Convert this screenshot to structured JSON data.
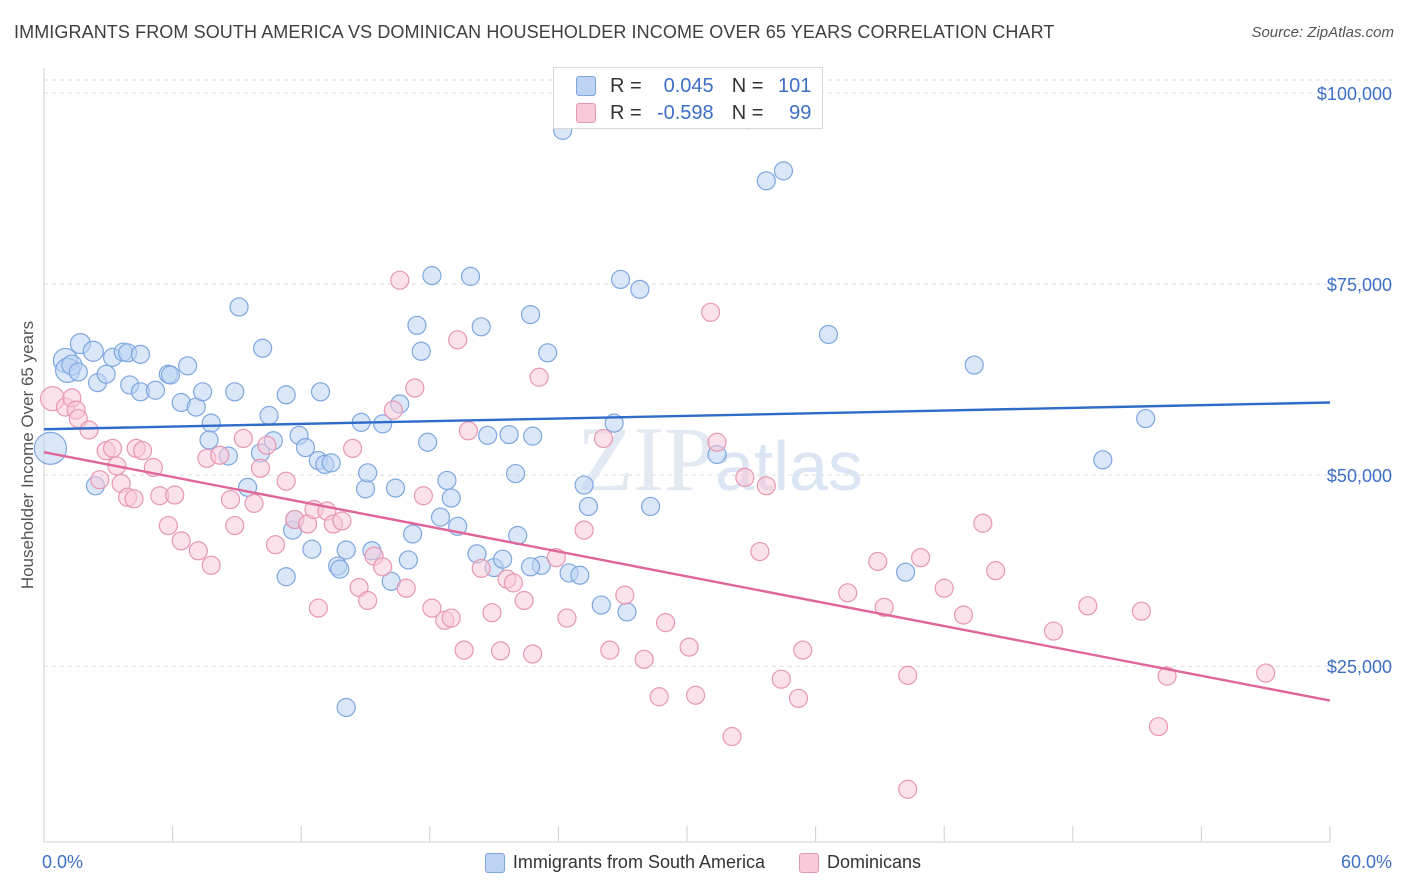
{
  "title": "IMMIGRANTS FROM SOUTH AMERICA VS DOMINICAN HOUSEHOLDER INCOME OVER 65 YEARS CORRELATION CHART",
  "source": "Source: ZipAtlas.com",
  "watermark": "ZIPatlas",
  "stats_box": {
    "rows": [
      {
        "r_label": "R =",
        "r_value": "0.045",
        "n_label": "N =",
        "n_value": "101",
        "color": "#7ea6df"
      },
      {
        "r_label": "R =",
        "r_value": "-0.598",
        "n_label": "N =",
        "n_value": "99",
        "color": "#e797b1"
      }
    ]
  },
  "legend": [
    {
      "label": "Immigrants from South America",
      "color": "#7ea6df"
    },
    {
      "label": "Dominicans",
      "color": "#e797b1"
    }
  ],
  "chart_data": {
    "type": "scatter",
    "title": "IMMIGRANTS FROM SOUTH AMERICA VS DOMINICAN HOUSEHOLDER INCOME OVER 65 YEARS CORRELATION CHART",
    "xlabel": "",
    "ylabel": "Householder Income Over 65 years",
    "xlim": [
      0,
      60
    ],
    "ylim": [
      2000,
      103000
    ],
    "x_tick_labels": [
      "0.0%",
      "60.0%"
    ],
    "y_ticks": [
      25000,
      50000,
      75000,
      100000
    ],
    "y_tick_labels": [
      "$25,000",
      "$50,000",
      "$75,000",
      "$100,000"
    ],
    "grid": true,
    "series": [
      {
        "name": "Immigrants from South America",
        "color": "#7ea6df",
        "fill": "#bcd3f2",
        "trend": {
          "x": [
            0,
            60
          ],
          "y": [
            56000,
            59500
          ]
        },
        "points": [
          [
            0.3,
            53.5,
            16
          ],
          [
            1.0,
            65.0,
            12
          ],
          [
            1.1,
            63.7,
            12
          ],
          [
            1.7,
            67.2,
            10
          ],
          [
            2.3,
            66.2,
            10
          ],
          [
            1.3,
            64.4,
            10
          ],
          [
            1.6,
            63.5,
            9
          ],
          [
            2.5,
            62.1,
            9
          ],
          [
            2.9,
            63.2,
            9
          ],
          [
            3.2,
            65.4,
            9
          ],
          [
            3.7,
            66.1,
            9
          ],
          [
            3.9,
            66.0,
            9
          ],
          [
            4.5,
            65.8,
            9
          ],
          [
            4.0,
            61.8,
            9
          ],
          [
            4.5,
            60.9,
            9
          ],
          [
            5.2,
            61.1,
            9
          ],
          [
            5.8,
            63.2,
            9
          ],
          [
            5.9,
            63.1,
            9
          ],
          [
            6.4,
            59.5,
            9
          ],
          [
            6.7,
            64.3,
            9
          ],
          [
            7.1,
            58.9,
            9
          ],
          [
            7.4,
            60.9,
            9
          ],
          [
            7.8,
            56.8,
            9
          ],
          [
            7.7,
            54.6,
            9
          ],
          [
            8.6,
            52.5,
            9
          ],
          [
            8.9,
            60.9,
            9
          ],
          [
            9.1,
            72.0,
            9
          ],
          [
            9.5,
            48.4,
            9
          ],
          [
            10.1,
            52.9,
            9
          ],
          [
            10.2,
            66.6,
            9
          ],
          [
            10.5,
            57.8,
            9
          ],
          [
            10.7,
            54.5,
            9
          ],
          [
            11.3,
            60.5,
            9
          ],
          [
            11.3,
            36.7,
            9
          ],
          [
            11.6,
            42.8,
            9
          ],
          [
            11.7,
            44.2,
            9
          ],
          [
            11.9,
            55.2,
            9
          ],
          [
            12.2,
            53.6,
            9
          ],
          [
            12.5,
            40.3,
            9
          ],
          [
            12.8,
            51.9,
            9
          ],
          [
            12.9,
            60.9,
            9
          ],
          [
            13.1,
            51.4,
            9
          ],
          [
            13.4,
            51.6,
            9
          ],
          [
            13.7,
            38.1,
            9
          ],
          [
            14.1,
            40.2,
            9
          ],
          [
            14.8,
            56.9,
            9
          ],
          [
            15.0,
            48.2,
            9
          ],
          [
            15.1,
            50.3,
            9
          ],
          [
            15.3,
            40.1,
            9
          ],
          [
            15.8,
            56.7,
            9
          ],
          [
            16.2,
            36.1,
            9
          ],
          [
            16.4,
            48.3,
            9
          ],
          [
            16.6,
            59.3,
            9
          ],
          [
            17.0,
            38.9,
            9
          ],
          [
            17.2,
            42.3,
            9
          ],
          [
            17.4,
            69.6,
            9
          ],
          [
            17.6,
            66.2,
            9
          ],
          [
            17.9,
            54.3,
            9
          ],
          [
            18.1,
            76.1,
            9
          ],
          [
            18.5,
            44.5,
            9
          ],
          [
            18.8,
            49.3,
            9
          ],
          [
            19.0,
            47.0,
            9
          ],
          [
            19.3,
            43.3,
            9
          ],
          [
            19.9,
            76.0,
            9
          ],
          [
            20.2,
            39.7,
            9
          ],
          [
            20.4,
            69.4,
            9
          ],
          [
            20.7,
            55.2,
            9
          ],
          [
            21.0,
            37.9,
            9
          ],
          [
            21.4,
            39.0,
            9
          ],
          [
            21.7,
            55.3,
            9
          ],
          [
            22.0,
            50.2,
            9
          ],
          [
            22.1,
            42.1,
            9
          ],
          [
            22.7,
            71.0,
            9
          ],
          [
            22.8,
            55.1,
            9
          ],
          [
            23.2,
            38.2,
            9
          ],
          [
            23.5,
            66.0,
            9
          ],
          [
            24.2,
            95.1,
            9
          ],
          [
            24.5,
            37.2,
            9
          ],
          [
            25.0,
            36.9,
            9
          ],
          [
            25.2,
            48.7,
            9
          ],
          [
            25.4,
            45.9,
            9
          ],
          [
            26.0,
            33.0,
            9
          ],
          [
            26.6,
            56.8,
            9
          ],
          [
            26.9,
            75.6,
            9
          ],
          [
            27.2,
            32.1,
            9
          ],
          [
            27.8,
            74.3,
            9
          ],
          [
            28.3,
            45.9,
            9
          ],
          [
            31.4,
            52.7,
            9
          ],
          [
            32.3,
            99.7,
            9
          ],
          [
            32.8,
            96.5,
            9
          ],
          [
            33.7,
            88.5,
            9
          ],
          [
            34.5,
            89.8,
            9
          ],
          [
            36.6,
            68.4,
            9
          ],
          [
            40.2,
            37.3,
            9
          ],
          [
            43.4,
            64.4,
            9
          ],
          [
            49.4,
            52.0,
            9
          ],
          [
            51.4,
            57.4,
            9
          ],
          [
            14.1,
            19.6,
            9
          ],
          [
            2.4,
            48.6,
            9
          ],
          [
            13.8,
            37.7,
            9
          ],
          [
            22.7,
            38.0,
            9
          ]
        ]
      },
      {
        "name": "Dominicans",
        "color": "#e797b1",
        "fill": "#f8c9d8",
        "trend": {
          "x": [
            0,
            60
          ],
          "y": [
            53000,
            20500
          ]
        },
        "points": [
          [
            0.4,
            60.0,
            12
          ],
          [
            1.0,
            58.9,
            9
          ],
          [
            1.3,
            60.1,
            9
          ],
          [
            1.5,
            58.5,
            9
          ],
          [
            1.6,
            57.4,
            9
          ],
          [
            2.1,
            55.9,
            9
          ],
          [
            2.6,
            49.4,
            9
          ],
          [
            2.9,
            53.2,
            9
          ],
          [
            3.2,
            53.5,
            9
          ],
          [
            3.4,
            51.2,
            9
          ],
          [
            3.6,
            48.9,
            9
          ],
          [
            3.9,
            47.1,
            9
          ],
          [
            4.2,
            46.9,
            9
          ],
          [
            4.3,
            53.5,
            9
          ],
          [
            4.6,
            53.2,
            9
          ],
          [
            5.1,
            51.0,
            9
          ],
          [
            5.4,
            47.3,
            9
          ],
          [
            5.8,
            43.4,
            9
          ],
          [
            6.1,
            47.4,
            9
          ],
          [
            6.4,
            41.4,
            9
          ],
          [
            7.2,
            40.1,
            9
          ],
          [
            7.6,
            52.2,
            9
          ],
          [
            7.8,
            38.2,
            9
          ],
          [
            8.2,
            52.6,
            9
          ],
          [
            8.7,
            46.8,
            9
          ],
          [
            8.9,
            43.4,
            9
          ],
          [
            9.3,
            54.8,
            9
          ],
          [
            9.8,
            46.3,
            9
          ],
          [
            10.1,
            50.9,
            9
          ],
          [
            10.4,
            53.9,
            9
          ],
          [
            10.8,
            40.9,
            9
          ],
          [
            11.3,
            49.2,
            9
          ],
          [
            11.7,
            44.2,
            9
          ],
          [
            12.3,
            43.6,
            9
          ],
          [
            12.6,
            45.5,
            9
          ],
          [
            12.8,
            32.6,
            9
          ],
          [
            13.2,
            45.3,
            9
          ],
          [
            13.5,
            43.6,
            9
          ],
          [
            13.9,
            44.0,
            9
          ],
          [
            14.4,
            53.5,
            9
          ],
          [
            14.7,
            35.3,
            9
          ],
          [
            15.1,
            33.6,
            9
          ],
          [
            15.4,
            39.4,
            9
          ],
          [
            15.8,
            38.0,
            9
          ],
          [
            16.3,
            58.5,
            9
          ],
          [
            16.6,
            75.5,
            9
          ],
          [
            16.9,
            35.2,
            9
          ],
          [
            17.3,
            61.4,
            9
          ],
          [
            17.7,
            47.3,
            9
          ],
          [
            18.1,
            32.6,
            9
          ],
          [
            18.7,
            31.0,
            9
          ],
          [
            19.0,
            31.3,
            9
          ],
          [
            19.3,
            67.7,
            9
          ],
          [
            19.6,
            27.1,
            9
          ],
          [
            19.8,
            55.8,
            9
          ],
          [
            20.4,
            37.8,
            9
          ],
          [
            20.9,
            32.0,
            9
          ],
          [
            21.3,
            27.0,
            9
          ],
          [
            21.6,
            36.4,
            9
          ],
          [
            21.9,
            35.9,
            9
          ],
          [
            22.4,
            33.6,
            9
          ],
          [
            22.8,
            26.6,
            9
          ],
          [
            23.1,
            62.8,
            9
          ],
          [
            23.9,
            39.2,
            9
          ],
          [
            24.4,
            31.3,
            9
          ],
          [
            25.2,
            42.8,
            9
          ],
          [
            26.1,
            54.8,
            9
          ],
          [
            26.4,
            27.1,
            9
          ],
          [
            27.1,
            34.3,
            9
          ],
          [
            28.0,
            25.9,
            9
          ],
          [
            28.7,
            21.0,
            9
          ],
          [
            29.0,
            30.7,
            9
          ],
          [
            30.1,
            27.5,
            9
          ],
          [
            30.4,
            21.2,
            9
          ],
          [
            31.1,
            71.3,
            9
          ],
          [
            31.4,
            54.3,
            9
          ],
          [
            32.1,
            15.8,
            9
          ],
          [
            32.7,
            49.7,
            9
          ],
          [
            33.4,
            40.0,
            9
          ],
          [
            33.7,
            48.6,
            9
          ],
          [
            34.4,
            23.3,
            9
          ],
          [
            35.2,
            20.8,
            9
          ],
          [
            35.4,
            27.1,
            9
          ],
          [
            37.5,
            34.6,
            9
          ],
          [
            38.9,
            38.7,
            9
          ],
          [
            39.2,
            32.7,
            9
          ],
          [
            40.3,
            23.8,
            9
          ],
          [
            40.3,
            8.9,
            9
          ],
          [
            40.9,
            39.2,
            9
          ],
          [
            42.0,
            35.2,
            9
          ],
          [
            42.9,
            31.7,
            9
          ],
          [
            43.8,
            43.7,
            9
          ],
          [
            44.4,
            37.5,
            9
          ],
          [
            47.1,
            29.6,
            9
          ],
          [
            48.7,
            32.9,
            9
          ],
          [
            51.2,
            32.2,
            9
          ],
          [
            52.0,
            17.1,
            9
          ],
          [
            52.4,
            23.7,
            9
          ],
          [
            57.0,
            24.1,
            9
          ]
        ]
      }
    ]
  }
}
